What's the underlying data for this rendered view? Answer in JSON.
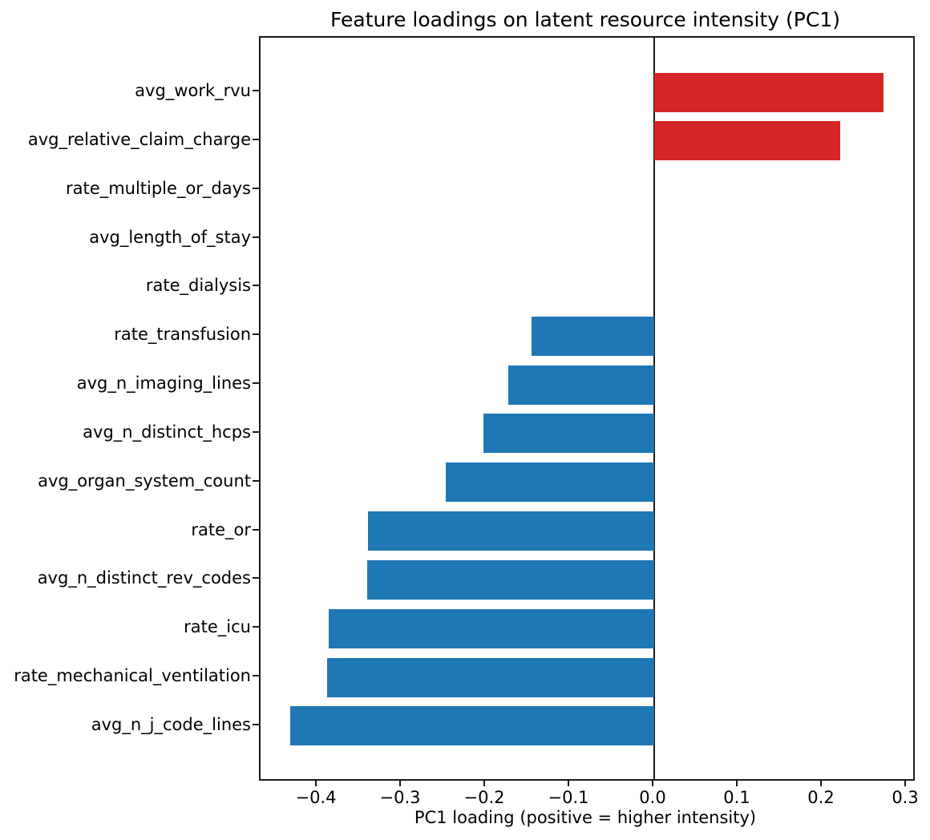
{
  "figure": {
    "background": "#ffffff"
  },
  "chart_data": {
    "type": "bar",
    "orientation": "horizontal",
    "title": "Feature loadings on latent resource intensity (PC1)",
    "xlabel": "PC1 loading (positive = higher intensity)",
    "ylabel": "",
    "categories": [
      "avg_work_rvu",
      "avg_relative_claim_charge",
      "rate_multiple_or_days",
      "avg_length_of_stay",
      "rate_dialysis",
      "rate_transfusion",
      "avg_n_imaging_lines",
      "avg_n_distinct_hcps",
      "avg_organ_system_count",
      "rate_or",
      "avg_n_distinct_rev_codes",
      "rate_icu",
      "rate_mechanical_ventilation",
      "avg_n_j_code_lines"
    ],
    "values": [
      0.272,
      0.221,
      0.0,
      0.0,
      0.0,
      -0.146,
      -0.173,
      -0.203,
      -0.248,
      -0.34,
      -0.341,
      -0.387,
      -0.389,
      -0.432
    ],
    "xlim": [
      -0.4676,
      0.3076
    ],
    "xticks": [
      -0.4,
      -0.3,
      -0.2,
      -0.1,
      0.0,
      0.1,
      0.2,
      0.3
    ],
    "xtick_labels": [
      "−0.4",
      "−0.3",
      "−0.2",
      "−0.1",
      "0.0",
      "0.1",
      "0.2",
      "0.3"
    ],
    "grid": false,
    "zero_line": true,
    "legend": null,
    "colors": {
      "positive_bar": "#d62728",
      "negative_bar": "#1f77b4",
      "axis": "#1a1a1a",
      "text": "#000000"
    }
  }
}
